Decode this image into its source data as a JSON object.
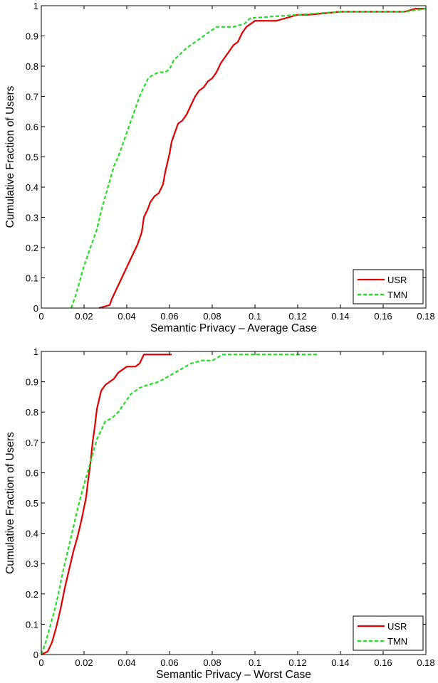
{
  "chart_data": [
    {
      "type": "line",
      "xlabel": "Semantic Privacy – Average Case",
      "ylabel": "Cumulative Fraction of Users",
      "xlim": [
        0,
        0.18
      ],
      "ylim": [
        0,
        1
      ],
      "xticks": [
        0,
        0.02,
        0.04,
        0.06,
        0.08,
        0.1,
        0.12,
        0.14,
        0.16,
        0.18
      ],
      "xtick_labels": [
        "0",
        "0.02",
        "0.04",
        "0.06",
        "0.08",
        "0.1",
        "0.12",
        "0.14",
        "0.16",
        "0.18"
      ],
      "yticks": [
        0,
        0.1,
        0.2,
        0.3,
        0.4,
        0.5,
        0.6,
        0.7,
        0.8,
        0.9,
        1
      ],
      "ytick_labels": [
        "0",
        "0.1",
        "0.2",
        "0.3",
        "0.4",
        "0.5",
        "0.6",
        "0.7",
        "0.8",
        "0.9",
        "1"
      ],
      "grid": false,
      "legend": "bottom-right",
      "series": [
        {
          "name": "USR",
          "color": "#e00000",
          "dash": "solid",
          "x": [
            0.027,
            0.032,
            0.033,
            0.035,
            0.037,
            0.039,
            0.041,
            0.043,
            0.045,
            0.047,
            0.048,
            0.05,
            0.051,
            0.053,
            0.055,
            0.057,
            0.058,
            0.059,
            0.06,
            0.061,
            0.062,
            0.063,
            0.064,
            0.066,
            0.068,
            0.07,
            0.072,
            0.074,
            0.076,
            0.077,
            0.078,
            0.08,
            0.082,
            0.084,
            0.086,
            0.088,
            0.09,
            0.092,
            0.094,
            0.096,
            0.098,
            0.1,
            0.101,
            0.11,
            0.12,
            0.125,
            0.14,
            0.17,
            0.175,
            0.18
          ],
          "y": [
            0.0,
            0.01,
            0.03,
            0.06,
            0.09,
            0.12,
            0.15,
            0.18,
            0.21,
            0.25,
            0.3,
            0.33,
            0.35,
            0.37,
            0.38,
            0.41,
            0.45,
            0.48,
            0.51,
            0.55,
            0.57,
            0.59,
            0.61,
            0.62,
            0.64,
            0.67,
            0.7,
            0.72,
            0.73,
            0.74,
            0.75,
            0.76,
            0.78,
            0.81,
            0.83,
            0.85,
            0.87,
            0.88,
            0.91,
            0.93,
            0.94,
            0.95,
            0.95,
            0.95,
            0.97,
            0.97,
            0.98,
            0.98,
            0.99,
            0.99
          ]
        },
        {
          "name": "TMN",
          "color": "#22dd22",
          "dash": "dashed",
          "x": [
            0.014,
            0.016,
            0.018,
            0.02,
            0.022,
            0.024,
            0.026,
            0.028,
            0.03,
            0.032,
            0.034,
            0.036,
            0.038,
            0.04,
            0.042,
            0.044,
            0.046,
            0.048,
            0.05,
            0.052,
            0.055,
            0.058,
            0.06,
            0.062,
            0.065,
            0.068,
            0.07,
            0.074,
            0.078,
            0.082,
            0.086,
            0.09,
            0.095,
            0.098,
            0.1,
            0.12,
            0.14,
            0.17,
            0.18
          ],
          "y": [
            0.0,
            0.04,
            0.09,
            0.14,
            0.18,
            0.22,
            0.26,
            0.32,
            0.37,
            0.42,
            0.47,
            0.5,
            0.54,
            0.58,
            0.62,
            0.66,
            0.7,
            0.73,
            0.76,
            0.77,
            0.78,
            0.78,
            0.79,
            0.82,
            0.84,
            0.86,
            0.87,
            0.89,
            0.91,
            0.93,
            0.93,
            0.93,
            0.94,
            0.96,
            0.96,
            0.97,
            0.98,
            0.98,
            0.99
          ]
        }
      ]
    },
    {
      "type": "line",
      "xlabel": "Semantic Privacy – Worst Case",
      "ylabel": "Cumulative Fraction of Users",
      "xlim": [
        0,
        0.18
      ],
      "ylim": [
        0,
        1
      ],
      "xticks": [
        0,
        0.02,
        0.04,
        0.06,
        0.08,
        0.1,
        0.12,
        0.14,
        0.16,
        0.18
      ],
      "xtick_labels": [
        "0",
        "0.02",
        "0.04",
        "0.06",
        "0.08",
        "0.1",
        "0.12",
        "0.14",
        "0.16",
        "0.18"
      ],
      "yticks": [
        0,
        0.1,
        0.2,
        0.3,
        0.4,
        0.5,
        0.6,
        0.7,
        0.8,
        0.9,
        1
      ],
      "ytick_labels": [
        "0",
        "0.1",
        "0.2",
        "0.3",
        "0.4",
        "0.5",
        "0.6",
        "0.7",
        "0.8",
        "0.9",
        "1"
      ],
      "grid": false,
      "legend": "bottom-right",
      "series": [
        {
          "name": "USR",
          "color": "#e00000",
          "dash": "solid",
          "x": [
            0.0,
            0.003,
            0.005,
            0.007,
            0.009,
            0.011,
            0.013,
            0.015,
            0.017,
            0.019,
            0.021,
            0.022,
            0.023,
            0.024,
            0.025,
            0.026,
            0.027,
            0.028,
            0.03,
            0.032,
            0.034,
            0.036,
            0.038,
            0.04,
            0.044,
            0.046,
            0.048,
            0.055,
            0.061
          ],
          "y": [
            0.0,
            0.01,
            0.04,
            0.09,
            0.15,
            0.22,
            0.28,
            0.34,
            0.39,
            0.45,
            0.52,
            0.58,
            0.63,
            0.7,
            0.75,
            0.81,
            0.84,
            0.87,
            0.89,
            0.9,
            0.91,
            0.93,
            0.94,
            0.95,
            0.95,
            0.96,
            0.99,
            0.99,
            0.99
          ]
        },
        {
          "name": "TMN",
          "color": "#22dd22",
          "dash": "dashed",
          "x": [
            0.0,
            0.002,
            0.004,
            0.006,
            0.008,
            0.01,
            0.012,
            0.014,
            0.016,
            0.018,
            0.02,
            0.022,
            0.024,
            0.026,
            0.028,
            0.03,
            0.033,
            0.036,
            0.039,
            0.042,
            0.046,
            0.05,
            0.055,
            0.06,
            0.065,
            0.07,
            0.075,
            0.08,
            0.085,
            0.09,
            0.1,
            0.12,
            0.13
          ],
          "y": [
            0.0,
            0.04,
            0.09,
            0.14,
            0.2,
            0.27,
            0.33,
            0.39,
            0.45,
            0.51,
            0.56,
            0.61,
            0.66,
            0.71,
            0.74,
            0.77,
            0.78,
            0.8,
            0.83,
            0.86,
            0.88,
            0.89,
            0.9,
            0.92,
            0.94,
            0.96,
            0.97,
            0.97,
            0.99,
            0.99,
            0.99,
            0.99,
            0.99
          ]
        }
      ]
    }
  ]
}
